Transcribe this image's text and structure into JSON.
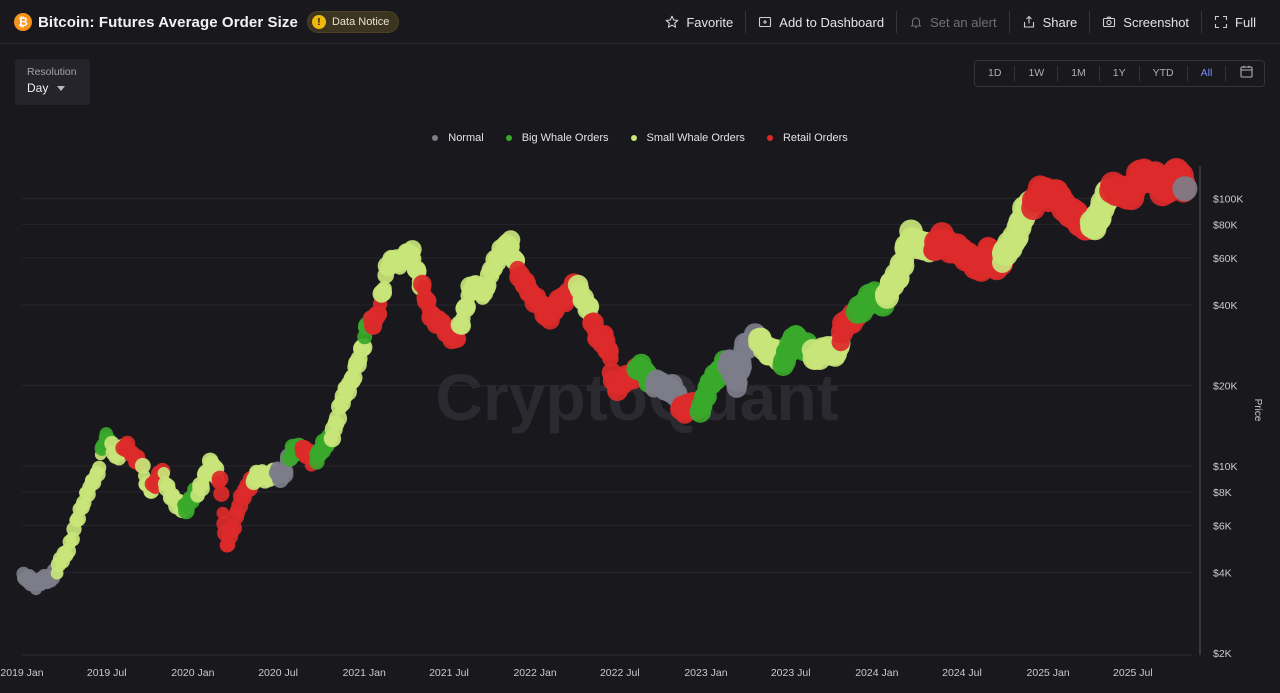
{
  "header": {
    "title": "Bitcoin: Futures Average Order Size",
    "notice": "Data Notice",
    "actions": [
      {
        "label": "Favorite",
        "icon": "star-icon",
        "disabled": false
      },
      {
        "label": "Add to Dashboard",
        "icon": "dashboard-add-icon",
        "disabled": false
      },
      {
        "label": "Set an alert",
        "icon": "bell-icon",
        "disabled": true
      },
      {
        "label": "Share",
        "icon": "share-icon",
        "disabled": false
      },
      {
        "label": "Screenshot",
        "icon": "camera-icon",
        "disabled": false
      },
      {
        "label": "Full",
        "icon": "fullscreen-icon",
        "disabled": false
      }
    ]
  },
  "resolution": {
    "label": "Resolution",
    "value": "Day"
  },
  "ranges": [
    {
      "label": "1D",
      "active": false
    },
    {
      "label": "1W",
      "active": false
    },
    {
      "label": "1M",
      "active": false
    },
    {
      "label": "1Y",
      "active": false
    },
    {
      "label": "YTD",
      "active": false
    },
    {
      "label": "All",
      "active": true
    }
  ],
  "watermark": "CryptoQuant",
  "chart_data": {
    "type": "scatter",
    "ylabel": "Price",
    "yscale": "log",
    "ylim": [
      2000,
      130000
    ],
    "xlim": [
      "2019-01-01",
      "2025-10-31"
    ],
    "x_ticks": [
      "2019 Jan",
      "2019 Jul",
      "2020 Jan",
      "2020 Jul",
      "2021 Jan",
      "2021 Jul",
      "2022 Jan",
      "2022 Jul",
      "2023 Jan",
      "2023 Jul",
      "2024 Jan",
      "2024 Jul",
      "2025 Jan",
      "2025 Jul"
    ],
    "x_tick_dates": [
      "2019-01-01",
      "2019-07-01",
      "2020-01-01",
      "2020-07-01",
      "2021-01-01",
      "2021-07-01",
      "2022-01-01",
      "2022-07-01",
      "2023-01-01",
      "2023-07-01",
      "2024-01-01",
      "2024-07-01",
      "2025-01-01",
      "2025-07-01"
    ],
    "y_ticks": [
      {
        "label": "$2K",
        "value": 2000
      },
      {
        "label": "$4K",
        "value": 4000
      },
      {
        "label": "$6K",
        "value": 6000
      },
      {
        "label": "$8K",
        "value": 8000
      },
      {
        "label": "$10K",
        "value": 10000
      },
      {
        "label": "$20K",
        "value": 20000
      },
      {
        "label": "$40K",
        "value": 40000
      },
      {
        "label": "$60K",
        "value": 60000
      },
      {
        "label": "$80K",
        "value": 80000
      },
      {
        "label": "$100K",
        "value": 100000
      }
    ],
    "grid": true,
    "legend_position": "top-center",
    "series": [
      {
        "name": "Normal",
        "color": "#7d7d8a"
      },
      {
        "name": "Big Whale Orders",
        "color": "#39a92b"
      },
      {
        "name": "Small Whale Orders",
        "color": "#c8e57a"
      },
      {
        "name": "Retail Orders",
        "color": "#dc2a2a"
      }
    ],
    "segments": [
      {
        "start": "2019-01-01",
        "end": "2019-03-15",
        "category": "Normal"
      },
      {
        "start": "2019-03-15",
        "end": "2019-06-20",
        "category": "Small Whale Orders"
      },
      {
        "start": "2019-06-20",
        "end": "2019-07-10",
        "category": "Big Whale Orders"
      },
      {
        "start": "2019-07-10",
        "end": "2019-08-05",
        "category": "Small Whale Orders"
      },
      {
        "start": "2019-08-05",
        "end": "2019-09-15",
        "category": "Retail Orders"
      },
      {
        "start": "2019-09-15",
        "end": "2019-10-05",
        "category": "Small Whale Orders"
      },
      {
        "start": "2019-10-05",
        "end": "2019-10-30",
        "category": "Retail Orders"
      },
      {
        "start": "2019-10-30",
        "end": "2019-12-10",
        "category": "Small Whale Orders"
      },
      {
        "start": "2019-12-10",
        "end": "2020-01-10",
        "category": "Big Whale Orders"
      },
      {
        "start": "2020-01-10",
        "end": "2020-02-25",
        "category": "Small Whale Orders"
      },
      {
        "start": "2020-02-25",
        "end": "2020-05-10",
        "category": "Retail Orders"
      },
      {
        "start": "2020-05-10",
        "end": "2020-06-25",
        "category": "Small Whale Orders"
      },
      {
        "start": "2020-06-25",
        "end": "2020-07-25",
        "category": "Normal"
      },
      {
        "start": "2020-07-25",
        "end": "2020-08-20",
        "category": "Big Whale Orders"
      },
      {
        "start": "2020-08-20",
        "end": "2020-09-20",
        "category": "Retail Orders"
      },
      {
        "start": "2020-09-20",
        "end": "2020-10-20",
        "category": "Big Whale Orders"
      },
      {
        "start": "2020-10-20",
        "end": "2021-01-01",
        "category": "Small Whale Orders"
      },
      {
        "start": "2021-01-01",
        "end": "2021-01-15",
        "category": "Big Whale Orders"
      },
      {
        "start": "2021-01-15",
        "end": "2021-02-05",
        "category": "Retail Orders"
      },
      {
        "start": "2021-02-05",
        "end": "2021-05-05",
        "category": "Small Whale Orders"
      },
      {
        "start": "2021-05-05",
        "end": "2021-07-25",
        "category": "Retail Orders"
      },
      {
        "start": "2021-07-25",
        "end": "2021-09-20",
        "category": "Small Whale Orders"
      },
      {
        "start": "2021-09-20",
        "end": "2021-11-25",
        "category": "Small Whale Orders"
      },
      {
        "start": "2021-11-25",
        "end": "2022-04-01",
        "category": "Retail Orders"
      },
      {
        "start": "2022-04-01",
        "end": "2022-05-01",
        "category": "Small Whale Orders"
      },
      {
        "start": "2022-05-01",
        "end": "2022-06-01",
        "category": "Retail Orders"
      },
      {
        "start": "2022-06-01",
        "end": "2022-08-05",
        "category": "Retail Orders"
      },
      {
        "start": "2022-08-05",
        "end": "2022-09-10",
        "category": "Big Whale Orders"
      },
      {
        "start": "2022-09-10",
        "end": "2022-11-08",
        "category": "Normal"
      },
      {
        "start": "2022-11-08",
        "end": "2022-12-20",
        "category": "Retail Orders"
      },
      {
        "start": "2022-12-20",
        "end": "2023-02-15",
        "category": "Big Whale Orders"
      },
      {
        "start": "2023-02-15",
        "end": "2023-04-20",
        "category": "Normal"
      },
      {
        "start": "2023-04-20",
        "end": "2023-06-15",
        "category": "Small Whale Orders"
      },
      {
        "start": "2023-06-15",
        "end": "2023-08-15",
        "category": "Big Whale Orders"
      },
      {
        "start": "2023-08-15",
        "end": "2023-10-15",
        "category": "Small Whale Orders"
      },
      {
        "start": "2023-10-15",
        "end": "2023-11-20",
        "category": "Retail Orders"
      },
      {
        "start": "2023-11-20",
        "end": "2024-01-20",
        "category": "Big Whale Orders"
      },
      {
        "start": "2024-01-20",
        "end": "2024-03-25",
        "category": "Small Whale Orders"
      },
      {
        "start": "2024-03-25",
        "end": "2024-05-01",
        "category": "Small Whale Orders"
      },
      {
        "start": "2024-05-01",
        "end": "2024-09-25",
        "category": "Retail Orders"
      },
      {
        "start": "2024-09-25",
        "end": "2024-11-30",
        "category": "Small Whale Orders"
      },
      {
        "start": "2024-11-30",
        "end": "2025-04-01",
        "category": "Retail Orders"
      },
      {
        "start": "2025-04-01",
        "end": "2025-05-15",
        "category": "Small Whale Orders"
      },
      {
        "start": "2025-05-15",
        "end": "2025-10-20",
        "category": "Retail Orders"
      }
    ],
    "price_points": [
      [
        "2019-01-01",
        3800
      ],
      [
        "2019-02-10",
        3600
      ],
      [
        "2019-03-15",
        4000
      ],
      [
        "2019-04-15",
        5200
      ],
      [
        "2019-05-15",
        7800
      ],
      [
        "2019-06-10",
        9200
      ],
      [
        "2019-06-26",
        13000
      ],
      [
        "2019-07-20",
        11000
      ],
      [
        "2019-08-10",
        11700
      ],
      [
        "2019-09-10",
        10300
      ],
      [
        "2019-09-26",
        8300
      ],
      [
        "2019-10-10",
        8500
      ],
      [
        "2019-10-28",
        9400
      ],
      [
        "2019-11-25",
        7200
      ],
      [
        "2019-12-20",
        7100
      ],
      [
        "2020-01-10",
        8000
      ],
      [
        "2020-02-12",
        10300
      ],
      [
        "2020-02-28",
        8800
      ],
      [
        "2020-03-13",
        4900
      ],
      [
        "2020-04-05",
        6800
      ],
      [
        "2020-05-05",
        9000
      ],
      [
        "2020-06-15",
        9400
      ],
      [
        "2020-07-10",
        9200
      ],
      [
        "2020-07-28",
        11000
      ],
      [
        "2020-08-20",
        11800
      ],
      [
        "2020-09-10",
        10300
      ],
      [
        "2020-10-20",
        12500
      ],
      [
        "2020-11-20",
        18500
      ],
      [
        "2020-12-25",
        26000
      ],
      [
        "2021-01-10",
        36000
      ],
      [
        "2021-01-25",
        33000
      ],
      [
        "2021-02-20",
        56000
      ],
      [
        "2021-03-15",
        58000
      ],
      [
        "2021-04-14",
        62000
      ],
      [
        "2021-05-20",
        38000
      ],
      [
        "2021-06-20",
        33000
      ],
      [
        "2021-07-20",
        30000
      ],
      [
        "2021-08-15",
        46000
      ],
      [
        "2021-09-15",
        45000
      ],
      [
        "2021-10-20",
        64000
      ],
      [
        "2021-11-10",
        67000
      ],
      [
        "2021-12-05",
        49000
      ],
      [
        "2022-01-10",
        41000
      ],
      [
        "2022-01-25",
        36000
      ],
      [
        "2022-02-20",
        40000
      ],
      [
        "2022-03-30",
        47000
      ],
      [
        "2022-04-25",
        39000
      ],
      [
        "2022-05-10",
        31000
      ],
      [
        "2022-06-01",
        30000
      ],
      [
        "2022-06-20",
        20000
      ],
      [
        "2022-07-15",
        21000
      ],
      [
        "2022-08-10",
        23500
      ],
      [
        "2022-09-15",
        20000
      ],
      [
        "2022-10-20",
        19500
      ],
      [
        "2022-11-10",
        16500
      ],
      [
        "2022-12-20",
        16800
      ],
      [
        "2023-01-20",
        22000
      ],
      [
        "2023-02-20",
        24500
      ],
      [
        "2023-03-10",
        20000
      ],
      [
        "2023-03-25",
        27500
      ],
      [
        "2023-04-15",
        30000
      ],
      [
        "2023-05-15",
        27000
      ],
      [
        "2023-06-15",
        25000
      ],
      [
        "2023-07-10",
        30500
      ],
      [
        "2023-08-20",
        26000
      ],
      [
        "2023-09-15",
        26500
      ],
      [
        "2023-10-10",
        27000
      ],
      [
        "2023-10-25",
        34000
      ],
      [
        "2023-11-25",
        37500
      ],
      [
        "2023-12-15",
        43000
      ],
      [
        "2024-01-15",
        42000
      ],
      [
        "2024-02-15",
        52000
      ],
      [
        "2024-03-14",
        72000
      ],
      [
        "2024-04-15",
        64000
      ],
      [
        "2024-05-20",
        70000
      ],
      [
        "2024-06-20",
        64000
      ],
      [
        "2024-07-15",
        62000
      ],
      [
        "2024-08-05",
        54000
      ],
      [
        "2024-08-25",
        64000
      ],
      [
        "2024-09-10",
        56000
      ],
      [
        "2024-10-15",
        66000
      ],
      [
        "2024-11-15",
        90000
      ],
      [
        "2024-12-17",
        106000
      ],
      [
        "2025-01-20",
        103000
      ],
      [
        "2025-02-25",
        86000
      ],
      [
        "2025-03-15",
        82000
      ],
      [
        "2025-04-08",
        77000
      ],
      [
        "2025-05-01",
        96000
      ],
      [
        "2025-05-22",
        111000
      ],
      [
        "2025-06-22",
        101000
      ],
      [
        "2025-07-14",
        122000
      ],
      [
        "2025-08-14",
        123000
      ],
      [
        "2025-09-01",
        108000
      ],
      [
        "2025-09-20",
        115000
      ],
      [
        "2025-10-06",
        124000
      ],
      [
        "2025-10-20",
        110000
      ]
    ]
  }
}
